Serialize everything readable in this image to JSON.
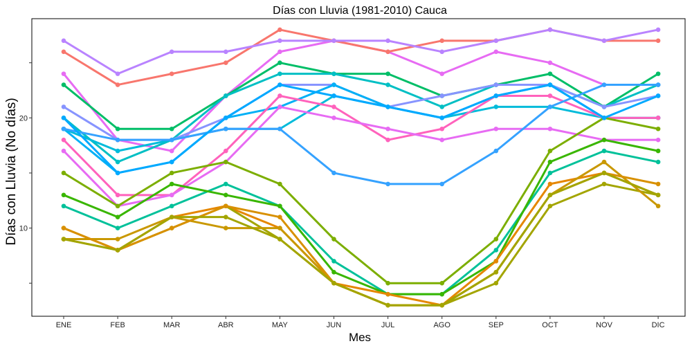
{
  "chart_data": {
    "type": "line",
    "title": "Días con Lluvia (1981-2010)  Cauca",
    "xlabel": "Mes",
    "ylabel": "Días con Lluvia (No días)",
    "categories": [
      "ENE",
      "FEB",
      "MAR",
      "ABR",
      "MAY",
      "JUN",
      "JUL",
      "AGO",
      "SEP",
      "OCT",
      "NOV",
      "DIC"
    ],
    "ylim": [
      2,
      29
    ],
    "yticks": [
      10,
      20
    ],
    "grid": false,
    "legend": "none",
    "series": [
      {
        "color": "#E76BF3",
        "values": [
          24,
          18,
          17,
          22,
          26,
          27,
          26,
          24,
          26,
          25,
          23,
          23
        ]
      },
      {
        "color": "#F8766D",
        "values": [
          26,
          23,
          24,
          25,
          28,
          27,
          26,
          27,
          27,
          28,
          27,
          27
        ]
      },
      {
        "color": "#B983FF",
        "values": [
          27,
          24,
          26,
          26,
          27,
          27,
          27,
          26,
          27,
          28,
          27,
          28
        ]
      },
      {
        "color": "#00BE67",
        "values": [
          23,
          19,
          19,
          22,
          25,
          24,
          24,
          22,
          23,
          24,
          21,
          24
        ]
      },
      {
        "color": "#00BFC4",
        "values": [
          20,
          16,
          18,
          22,
          24,
          24,
          23,
          21,
          23,
          23,
          21,
          23
        ]
      },
      {
        "color": "#8794FF",
        "values": [
          21,
          18,
          18,
          20,
          23,
          23,
          21,
          22,
          23,
          23,
          21,
          22
        ]
      },
      {
        "color": "#00B0F6",
        "values": [
          19,
          15,
          16,
          20,
          21,
          23,
          21,
          20,
          22,
          23,
          20,
          20
        ]
      },
      {
        "color": "#00BBDA",
        "values": [
          19,
          17,
          18,
          19,
          19,
          22,
          21,
          20,
          21,
          21,
          20,
          20
        ]
      },
      {
        "color": "#FF62BC",
        "values": [
          18,
          13,
          13,
          17,
          22,
          21,
          18,
          19,
          22,
          22,
          20,
          20
        ]
      },
      {
        "color": "#E76BF3",
        "values": [
          17,
          12,
          13,
          16,
          21,
          20,
          19,
          18,
          19,
          19,
          18,
          18
        ]
      },
      {
        "color": "#35A2FF",
        "values": [
          19,
          18,
          18,
          19,
          19,
          15,
          14,
          14,
          17,
          21,
          23,
          23
        ]
      },
      {
        "color": "#7CAE00",
        "values": [
          15,
          12,
          15,
          16,
          14,
          9,
          5,
          5,
          9,
          17,
          20,
          19
        ]
      },
      {
        "color": "#00A9FF",
        "values": [
          20,
          15,
          16,
          20,
          23,
          22,
          21,
          20,
          22,
          23,
          20,
          22
        ]
      },
      {
        "color": "#00C19A",
        "values": [
          12,
          10,
          12,
          14,
          12,
          7,
          4,
          4,
          8,
          15,
          17,
          16
        ]
      },
      {
        "color": "#39B600",
        "values": [
          13,
          11,
          14,
          13,
          12,
          6,
          4,
          4,
          7,
          16,
          18,
          17
        ]
      },
      {
        "color": "#E58700",
        "values": [
          10,
          8,
          11,
          12,
          10,
          5,
          4,
          3,
          7,
          14,
          15,
          13
        ]
      },
      {
        "color": "#A3A500",
        "values": [
          9,
          8,
          10,
          12,
          9,
          5,
          3,
          3,
          5,
          12,
          14,
          13
        ]
      },
      {
        "color": "#C99800",
        "values": [
          9,
          9,
          11,
          10,
          10,
          5,
          3,
          3,
          6,
          13,
          16,
          12
        ]
      },
      {
        "color": "#D89000",
        "values": [
          10,
          8,
          10,
          12,
          11,
          5,
          3,
          3,
          6,
          13,
          15,
          14
        ]
      },
      {
        "color": "#A3A500",
        "values": [
          9,
          8,
          11,
          11,
          9,
          5,
          3,
          3,
          6,
          13,
          15,
          13
        ]
      }
    ]
  }
}
